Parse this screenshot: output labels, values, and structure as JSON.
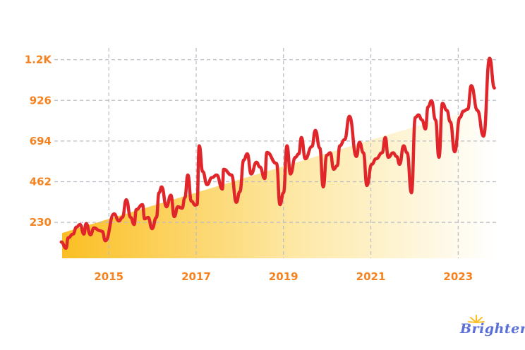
{
  "brand": {
    "logo_text": "Brighterly",
    "logo_color": "#5b6fd8",
    "sun_color": "#fbbf24"
  },
  "colors": {
    "line": "#e0262a",
    "tick_labels": "#f5821f",
    "grid": "#b9bcc4",
    "area_start": "#fbbf24",
    "area_end": "#ffffff"
  },
  "chart_data": {
    "type": "line",
    "title": "",
    "xlabel": "",
    "ylabel": "",
    "xlim": [
      2013.93,
      2023.9
    ],
    "ylim": [
      25,
      1225
    ],
    "grid": true,
    "x_ticks": [
      {
        "value": 2015,
        "label": "2015"
      },
      {
        "value": 2017,
        "label": "2017"
      },
      {
        "value": 2019,
        "label": "2019"
      },
      {
        "value": 2021,
        "label": "2021"
      },
      {
        "value": 2023,
        "label": "2023"
      }
    ],
    "y_ticks": [
      {
        "value": 230,
        "label": "230"
      },
      {
        "value": 462,
        "label": "462"
      },
      {
        "value": 694,
        "label": "694"
      },
      {
        "value": 926,
        "label": "926"
      },
      {
        "value": 1158,
        "label": "1.2K"
      }
    ],
    "trend_area": {
      "x": [
        2013.93,
        2022.0,
        2023.9
      ],
      "y": [
        169,
        775,
        912
      ]
    },
    "series": [
      {
        "x": [
          2013.91,
          2014.02,
          2014.07,
          2014.18,
          2014.26,
          2014.34,
          2014.43,
          2014.48,
          2014.58,
          2014.66,
          2014.8,
          2014.85,
          2014.92,
          2015.12,
          2015.23,
          2015.31,
          2015.4,
          2015.5,
          2015.58,
          2015.63,
          2015.77,
          2015.82,
          2015.9,
          2015.99,
          2016.09,
          2016.15,
          2016.21,
          2016.32,
          2016.42,
          2016.5,
          2016.58,
          2016.68,
          2016.74,
          2016.81,
          2016.89,
          2016.98,
          2017.02,
          2017.07,
          2017.15,
          2017.25,
          2017.36,
          2017.47,
          2017.6,
          2017.63,
          2017.81,
          2017.92,
          2018.0,
          2018.09,
          2018.17,
          2018.26,
          2018.38,
          2018.46,
          2018.57,
          2018.62,
          2018.84,
          2018.92,
          2019.0,
          2019.08,
          2019.16,
          2019.27,
          2019.35,
          2019.41,
          2019.5,
          2019.65,
          2019.73,
          2019.83,
          2019.91,
          2019.99,
          2020.07,
          2020.15,
          2020.23,
          2020.29,
          2020.4,
          2020.51,
          2020.67,
          2020.74,
          2020.83,
          2020.91,
          2021.02,
          2021.12,
          2021.26,
          2021.33,
          2021.4,
          2021.51,
          2021.59,
          2021.66,
          2021.75,
          2021.83,
          2021.93,
          2022.02,
          2022.09,
          2022.17,
          2022.25,
          2022.31,
          2022.39,
          2022.48,
          2022.56,
          2022.64,
          2022.74,
          2022.82,
          2022.92,
          2023.04,
          2023.12,
          2023.22,
          2023.3,
          2023.44,
          2023.58,
          2023.72,
          2023.83
        ],
        "y": [
          118,
          82,
          142,
          163,
          203,
          218,
          163,
          223,
          159,
          198,
          182,
          178,
          125,
          278,
          238,
          258,
          359,
          258,
          218,
          303,
          331,
          250,
          258,
          194,
          258,
          399,
          432,
          319,
          385,
          263,
          319,
          311,
          371,
          500,
          351,
          328,
          331,
          667,
          520,
          445,
          485,
          500,
          420,
          533,
          500,
          344,
          405,
          586,
          621,
          506,
          573,
          546,
          480,
          629,
          566,
          331,
          399,
          667,
          506,
          601,
          621,
          714,
          593,
          662,
          755,
          654,
          432,
          613,
          627,
          533,
          553,
          667,
          702,
          835,
          606,
          687,
          627,
          440,
          561,
          593,
          627,
          714,
          601,
          627,
          606,
          561,
          667,
          627,
          399,
          829,
          843,
          815,
          763,
          889,
          924,
          815,
          601,
          909,
          869,
          803,
          633,
          829,
          864,
          876,
          1010,
          869,
          722,
          1166,
          997
        ]
      }
    ]
  }
}
